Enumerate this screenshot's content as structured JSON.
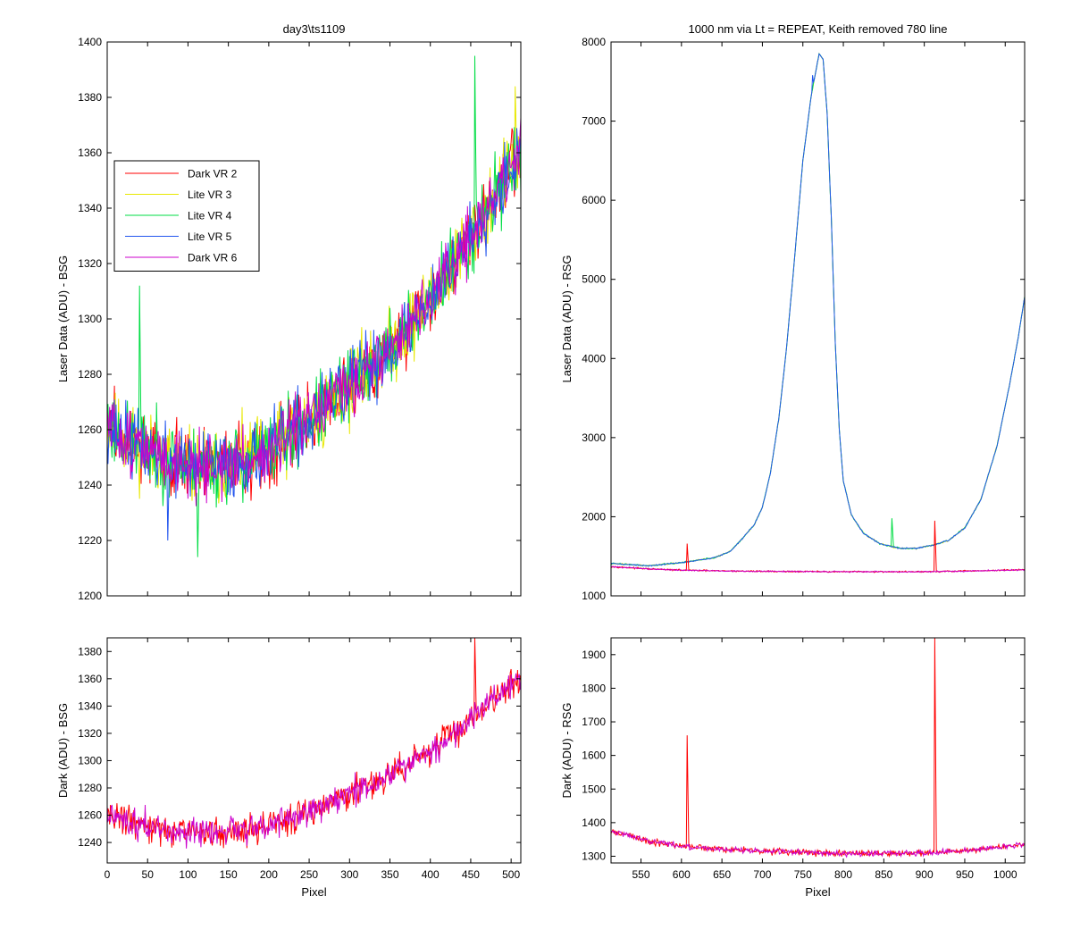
{
  "chart_data": [
    {
      "id": "top_left",
      "type": "line",
      "title": "day3\\ts1109",
      "xlabel": "",
      "ylabel": "Laser Data (ADU) - BSG",
      "xlim": [
        0,
        512
      ],
      "ylim": [
        1200,
        1400
      ],
      "xticks": [
        0,
        50,
        100,
        150,
        200,
        250,
        300,
        350,
        400,
        450,
        500
      ],
      "yticks": [
        1200,
        1220,
        1240,
        1260,
        1280,
        1300,
        1320,
        1340,
        1360,
        1380,
        1400
      ],
      "show_xtick_labels": false,
      "grid": false,
      "legend": {
        "position": "upper-left",
        "entries": [
          {
            "label": "Dark VR 2",
            "color": "#ff0000"
          },
          {
            "label": "Lite VR 3",
            "color": "#e8e800"
          },
          {
            "label": "Lite VR 4",
            "color": "#00dd44"
          },
          {
            "label": "Lite VR 5",
            "color": "#2255ee"
          },
          {
            "label": "Dark VR 6",
            "color": "#cc00cc"
          }
        ]
      },
      "series": [
        {
          "color": "#ff0000",
          "profile": "bsg",
          "noise": 11,
          "seed": 3
        },
        {
          "color": "#e8e800",
          "profile": "bsg",
          "noise": 12,
          "seed": 11
        },
        {
          "color": "#00dd44",
          "profile": "bsg",
          "noise": 12,
          "seed": 23
        },
        {
          "color": "#2255ee",
          "profile": "bsg",
          "noise": 11,
          "seed": 37
        },
        {
          "color": "#cc00cc",
          "profile": "bsg",
          "noise": 10,
          "seed": 51
        }
      ],
      "baseline_points": [
        [
          0,
          1262
        ],
        [
          30,
          1255
        ],
        [
          60,
          1251
        ],
        [
          100,
          1247
        ],
        [
          150,
          1247
        ],
        [
          200,
          1252
        ],
        [
          250,
          1263
        ],
        [
          300,
          1276
        ],
        [
          350,
          1289
        ],
        [
          400,
          1307
        ],
        [
          450,
          1330
        ],
        [
          500,
          1355
        ],
        [
          512,
          1360
        ]
      ],
      "spikes": [
        {
          "series": 2,
          "x": 40,
          "y": 1312
        },
        {
          "series": 2,
          "x": 455,
          "y": 1395
        },
        {
          "series": 2,
          "x": 112,
          "y": 1214
        },
        {
          "series": 3,
          "x": 75,
          "y": 1220
        },
        {
          "series": 1,
          "x": 505,
          "y": 1384
        }
      ]
    },
    {
      "id": "top_right",
      "type": "line",
      "title": "1000 nm via Lt = REPEAT, Keith removed 780 line",
      "xlabel": "",
      "ylabel": "Laser Data (ADU) - RSG",
      "xlim": [
        513,
        1024
      ],
      "ylim": [
        1000,
        8000
      ],
      "xticks": [
        550,
        600,
        650,
        700,
        750,
        800,
        850,
        900,
        950,
        1000
      ],
      "yticks": [
        1000,
        2000,
        3000,
        4000,
        5000,
        6000,
        7000,
        8000
      ],
      "show_xtick_labels": false,
      "grid": false,
      "series": [
        {
          "color": "#e8e800",
          "profile": "rsg_lite",
          "noise": 8,
          "seed": 61
        },
        {
          "color": "#00dd44",
          "profile": "rsg_lite",
          "noise": 8,
          "seed": 73
        },
        {
          "color": "#2255ee",
          "profile": "rsg_lite",
          "noise": 7,
          "seed": 89
        },
        {
          "color": "#ff0000",
          "profile": "rsg_dark",
          "noise": 8,
          "seed": 97
        },
        {
          "color": "#cc00cc",
          "profile": "rsg_dark",
          "noise": 7,
          "seed": 101
        }
      ],
      "lite_points": [
        [
          513,
          1410
        ],
        [
          560,
          1380
        ],
        [
          600,
          1420
        ],
        [
          640,
          1480
        ],
        [
          660,
          1560
        ],
        [
          675,
          1720
        ],
        [
          690,
          1900
        ],
        [
          700,
          2120
        ],
        [
          710,
          2560
        ],
        [
          720,
          3220
        ],
        [
          730,
          4150
        ],
        [
          740,
          5300
        ],
        [
          750,
          6500
        ],
        [
          760,
          7300
        ],
        [
          770,
          7850
        ],
        [
          775,
          7780
        ],
        [
          780,
          7100
        ],
        [
          785,
          5800
        ],
        [
          790,
          4200
        ],
        [
          795,
          3100
        ],
        [
          800,
          2450
        ],
        [
          810,
          2020
        ],
        [
          825,
          1790
        ],
        [
          845,
          1660
        ],
        [
          870,
          1600
        ],
        [
          890,
          1600
        ],
        [
          910,
          1640
        ],
        [
          930,
          1700
        ],
        [
          950,
          1860
        ],
        [
          970,
          2220
        ],
        [
          990,
          2900
        ],
        [
          1005,
          3650
        ],
        [
          1015,
          4200
        ],
        [
          1024,
          4780
        ]
      ],
      "dark_points": [
        [
          513,
          1370
        ],
        [
          560,
          1340
        ],
        [
          600,
          1325
        ],
        [
          650,
          1315
        ],
        [
          700,
          1310
        ],
        [
          800,
          1305
        ],
        [
          900,
          1305
        ],
        [
          960,
          1315
        ],
        [
          1024,
          1330
        ]
      ],
      "spikes": [
        {
          "series": 3,
          "x": 607,
          "y": 1660
        },
        {
          "series": 3,
          "x": 913,
          "y": 1950
        },
        {
          "series": 1,
          "x": 860,
          "y": 1980
        },
        {
          "series": 2,
          "x": 762,
          "y": 7580
        }
      ]
    },
    {
      "id": "bottom_left",
      "type": "line",
      "title": "",
      "xlabel": "Pixel",
      "ylabel": "Dark (ADU) - BSG",
      "xlim": [
        0,
        512
      ],
      "ylim": [
        1225,
        1390
      ],
      "xticks": [
        0,
        50,
        100,
        150,
        200,
        250,
        300,
        350,
        400,
        450,
        500
      ],
      "yticks": [
        1240,
        1260,
        1280,
        1300,
        1320,
        1340,
        1360,
        1380
      ],
      "show_xtick_labels": true,
      "grid": false,
      "series": [
        {
          "color": "#ff0000",
          "profile": "bsg",
          "noise": 10,
          "seed": 131
        },
        {
          "color": "#cc00cc",
          "profile": "bsg",
          "noise": 9,
          "seed": 149
        }
      ],
      "baseline_points": [
        [
          0,
          1262
        ],
        [
          30,
          1255
        ],
        [
          60,
          1251
        ],
        [
          100,
          1247
        ],
        [
          150,
          1247
        ],
        [
          200,
          1252
        ],
        [
          250,
          1263
        ],
        [
          300,
          1276
        ],
        [
          350,
          1289
        ],
        [
          400,
          1307
        ],
        [
          450,
          1330
        ],
        [
          500,
          1355
        ],
        [
          512,
          1360
        ]
      ],
      "spikes": [
        {
          "series": 0,
          "x": 455,
          "y": 1390
        }
      ]
    },
    {
      "id": "bottom_right",
      "type": "line",
      "title": "",
      "xlabel": "Pixel",
      "ylabel": "Dark (ADU) - RSG",
      "xlim": [
        513,
        1024
      ],
      "ylim": [
        1280,
        1950
      ],
      "xticks": [
        550,
        600,
        650,
        700,
        750,
        800,
        850,
        900,
        950,
        1000
      ],
      "yticks": [
        1300,
        1400,
        1500,
        1600,
        1700,
        1800,
        1900
      ],
      "show_xtick_labels": true,
      "grid": false,
      "series": [
        {
          "color": "#ff0000",
          "profile": "rsg_dark",
          "noise": 8,
          "seed": 163
        },
        {
          "color": "#cc00cc",
          "profile": "rsg_dark",
          "noise": 7,
          "seed": 179
        }
      ],
      "dark_points": [
        [
          513,
          1375
        ],
        [
          540,
          1360
        ],
        [
          560,
          1345
        ],
        [
          600,
          1330
        ],
        [
          650,
          1320
        ],
        [
          700,
          1315
        ],
        [
          800,
          1308
        ],
        [
          900,
          1310
        ],
        [
          960,
          1318
        ],
        [
          1024,
          1335
        ]
      ],
      "spikes": [
        {
          "series": 0,
          "x": 607,
          "y": 1660
        },
        {
          "series": 0,
          "x": 913,
          "y": 1950
        }
      ]
    }
  ]
}
